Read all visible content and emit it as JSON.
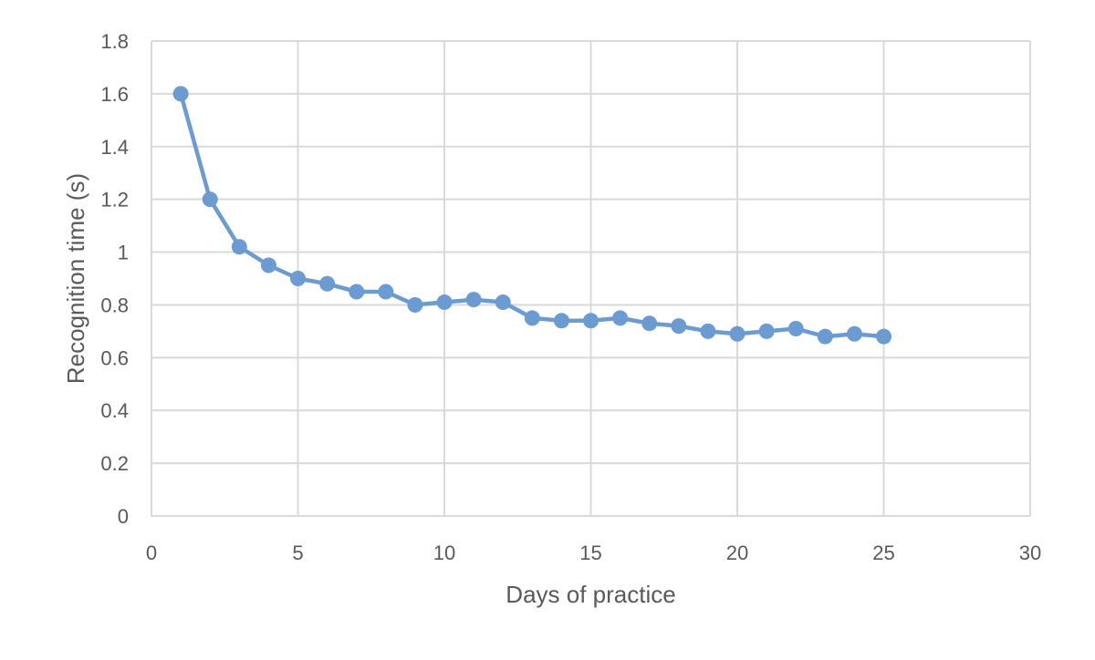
{
  "chart_data": {
    "type": "scatter",
    "title": "",
    "xlabel": "Days of practice",
    "ylabel": "Recognition time (s)",
    "xlim": [
      0,
      30
    ],
    "ylim": [
      0,
      1.8
    ],
    "xticks": [
      0,
      5,
      10,
      15,
      20,
      25,
      30
    ],
    "yticks": [
      0,
      0.2,
      0.4,
      0.6,
      0.8,
      1,
      1.2,
      1.4,
      1.6,
      1.8
    ],
    "xtick_labels": [
      "0",
      "5",
      "10",
      "15",
      "20",
      "25",
      "30"
    ],
    "ytick_labels": [
      "0",
      "0.2",
      "0.4",
      "0.6",
      "0.8",
      "1",
      "1.2",
      "1.4",
      "1.6",
      "1.8"
    ],
    "grid": true,
    "legend": "none",
    "lines_connected": true,
    "series": [
      {
        "color": "#6b9bd1",
        "x": [
          1,
          2,
          3,
          4,
          5,
          6,
          7,
          8,
          9,
          10,
          11,
          12,
          13,
          14,
          15,
          16,
          17,
          18,
          19,
          20,
          21,
          22,
          23,
          24,
          25
        ],
        "y": [
          1.6,
          1.2,
          1.02,
          0.95,
          0.9,
          0.88,
          0.85,
          0.85,
          0.8,
          0.81,
          0.82,
          0.81,
          0.75,
          0.74,
          0.74,
          0.75,
          0.73,
          0.72,
          0.7,
          0.69,
          0.7,
          0.71,
          0.68,
          0.69,
          0.68
        ]
      }
    ]
  }
}
